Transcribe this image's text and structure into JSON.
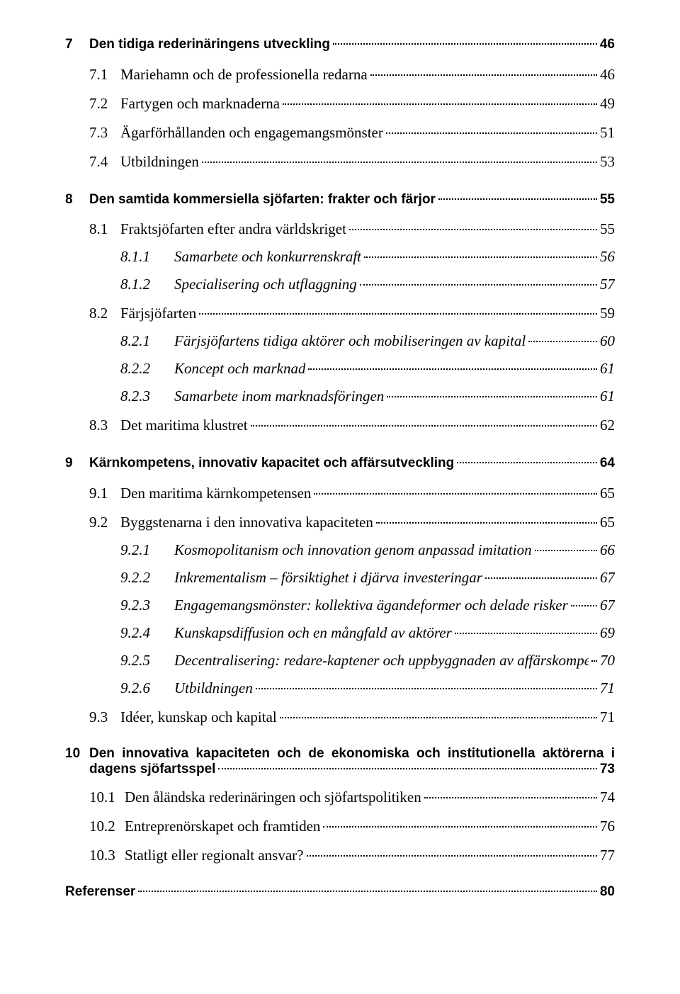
{
  "text_color": "#000000",
  "background_color": "#ffffff",
  "dot_color": "#000000",
  "fonts": {
    "chapter": {
      "family": "Arial",
      "weight": 700,
      "size_pt": 14
    },
    "section": {
      "family": "Times New Roman",
      "weight": 400,
      "size_pt": 16
    },
    "subsection": {
      "family": "Times New Roman",
      "weight": 400,
      "size_pt": 16,
      "style": "italic"
    }
  },
  "entries": [
    {
      "id": "c7",
      "kind": "chapter",
      "num": "7",
      "title": "Den tidiga rederinäringens utveckling",
      "page": "46"
    },
    {
      "id": "s71",
      "kind": "s1",
      "num": "7.1",
      "title": "Mariehamn och de professionella redarna",
      "page": "46"
    },
    {
      "id": "s72",
      "kind": "s1",
      "num": "7.2",
      "title": "Fartygen och marknaderna",
      "page": "49"
    },
    {
      "id": "s73",
      "kind": "s1",
      "num": "7.3",
      "title": "Ägarförhållanden och engagemangsmönster",
      "page": "51"
    },
    {
      "id": "s74",
      "kind": "s1",
      "num": "7.4",
      "title": "Utbildningen",
      "page": "53"
    },
    {
      "id": "c8",
      "kind": "chapter",
      "num": "8",
      "title": "Den samtida kommersiella sjöfarten: frakter och färjor",
      "page": "55"
    },
    {
      "id": "s81",
      "kind": "s1",
      "num": "8.1",
      "title": "Fraktsjöfarten efter andra världskriget",
      "page": "55"
    },
    {
      "id": "s811",
      "kind": "s2",
      "num": "8.1.1",
      "title": "Samarbete och konkurrenskraft",
      "page": "56"
    },
    {
      "id": "s812",
      "kind": "s2",
      "num": "8.1.2",
      "title": "Specialisering och utflaggning",
      "page": "57"
    },
    {
      "id": "s82",
      "kind": "s1",
      "num": "8.2",
      "title": "Färjsjöfarten",
      "page": "59"
    },
    {
      "id": "s821",
      "kind": "s2",
      "num": "8.2.1",
      "title": "Färjsjöfartens tidiga aktörer och mobiliseringen av kapital",
      "page": "60"
    },
    {
      "id": "s822",
      "kind": "s2",
      "num": "8.2.2",
      "title": "Koncept och marknad",
      "page": "61"
    },
    {
      "id": "s823",
      "kind": "s2",
      "num": "8.2.3",
      "title": "Samarbete inom marknadsföringen",
      "page": "61"
    },
    {
      "id": "s83",
      "kind": "s1",
      "num": "8.3",
      "title": "Det maritima klustret",
      "page": "62"
    },
    {
      "id": "c9",
      "kind": "chapter",
      "num": "9",
      "title": "Kärnkompetens, innovativ kapacitet och affärsutveckling",
      "page": "64"
    },
    {
      "id": "s91",
      "kind": "s1",
      "num": "9.1",
      "title": "Den maritima kärnkompetensen",
      "page": "65"
    },
    {
      "id": "s92",
      "kind": "s1",
      "num": "9.2",
      "title": "Byggstenarna i den innovativa kapaciteten",
      "page": "65"
    },
    {
      "id": "s921",
      "kind": "s2",
      "num": "9.2.1",
      "title": "Kosmopolitanism och innovation genom anpassad imitation",
      "page": "66"
    },
    {
      "id": "s922",
      "kind": "s2",
      "num": "9.2.2",
      "title": "Inkrementalism – försiktighet i djärva investeringar",
      "page": "67"
    },
    {
      "id": "s923",
      "kind": "s2",
      "num": "9.2.3",
      "title": "Engagemangsmönster: kollektiva ägandeformer och delade risker",
      "page": "67"
    },
    {
      "id": "s924",
      "kind": "s2",
      "num": "9.2.4",
      "title": "Kunskapsdiffusion och en mångfald av aktörer",
      "page": "69"
    },
    {
      "id": "s925",
      "kind": "s2",
      "num": "9.2.5",
      "title": "Decentralisering: redare-kaptener och uppbyggnaden av affärskompetens",
      "page": "70"
    },
    {
      "id": "s926",
      "kind": "s2",
      "num": "9.2.6",
      "title": "Utbildningen",
      "page": "71"
    },
    {
      "id": "s93",
      "kind": "s1",
      "num": "9.3",
      "title": "Idéer, kunskap och kapital",
      "page": "71"
    },
    {
      "id": "c10",
      "kind": "chapter_multiline",
      "num": "10",
      "title_line1": "Den innovativa kapaciteten och de ekonomiska och institutionella aktörerna i",
      "title_line2": "dagens sjöfartsspel",
      "page": "73"
    },
    {
      "id": "s101",
      "kind": "s1w",
      "num": "10.1",
      "title": "Den åländska rederinäringen och sjöfartspolitiken",
      "page": "74"
    },
    {
      "id": "s102",
      "kind": "s1w",
      "num": "10.2",
      "title": "Entreprenörskapet och framtiden",
      "page": "76"
    },
    {
      "id": "s103",
      "kind": "s1w",
      "num": "10.3",
      "title": "Statligt eller regionalt ansvar?",
      "page": "77"
    },
    {
      "id": "refs",
      "kind": "refs",
      "title": "Referenser",
      "page": "80"
    }
  ]
}
